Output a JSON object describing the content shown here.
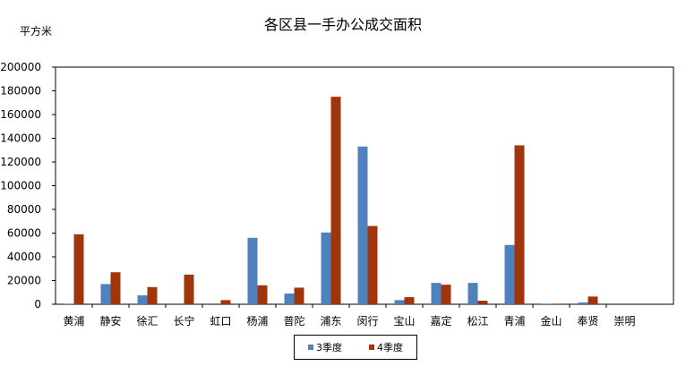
{
  "chart_data": {
    "type": "bar",
    "title": "各区县一手办公成交面积",
    "ylabel": "平方米",
    "xlabel": "",
    "ylim": [
      0,
      200000
    ],
    "yticks": [
      0,
      20000,
      40000,
      60000,
      80000,
      100000,
      120000,
      140000,
      160000,
      180000,
      200000
    ],
    "categories": [
      "黄浦",
      "静安",
      "徐汇",
      "长宁",
      "虹口",
      "杨浦",
      "普陀",
      "浦东",
      "闵行",
      "宝山",
      "嘉定",
      "松江",
      "青浦",
      "金山",
      "奉贤",
      "崇明"
    ],
    "series": [
      {
        "name": "3季度",
        "color": "#4F81BD",
        "values": [
          500,
          17000,
          7500,
          0,
          0,
          56000,
          9000,
          60500,
          133000,
          3500,
          18000,
          18000,
          50000,
          500,
          1500,
          0
        ]
      },
      {
        "name": "4季度",
        "color": "#A0350D",
        "values": [
          59000,
          27000,
          14500,
          25000,
          3500,
          16000,
          14000,
          175000,
          66000,
          6000,
          16500,
          3000,
          134000,
          500,
          6500,
          0
        ]
      }
    ],
    "legend": "bottom",
    "grid": false
  }
}
